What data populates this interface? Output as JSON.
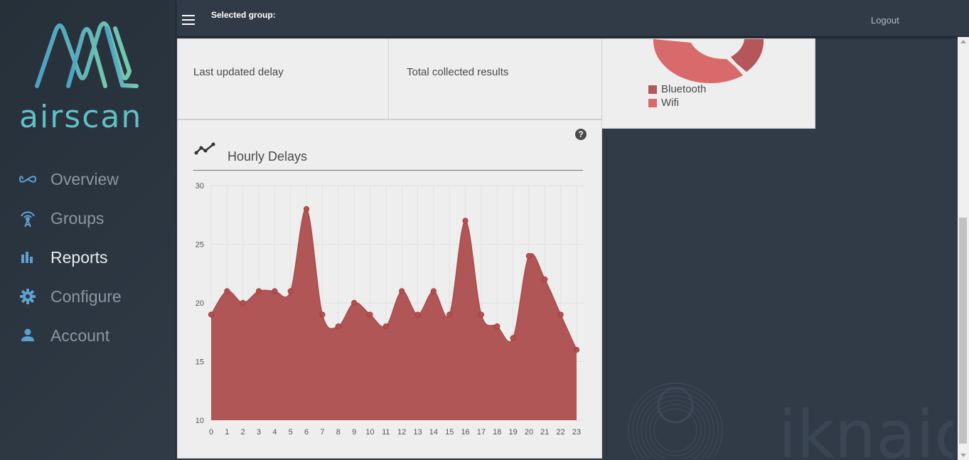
{
  "brand": {
    "name": "airscan"
  },
  "nav": {
    "items": [
      {
        "label": "Overview",
        "icon": "infinity-icon",
        "active": false
      },
      {
        "label": "Groups",
        "icon": "antenna-icon",
        "active": false
      },
      {
        "label": "Reports",
        "icon": "bar-chart-icon",
        "active": true
      },
      {
        "label": "Configure",
        "icon": "gear-icon",
        "active": false
      },
      {
        "label": "Account",
        "icon": "person-icon",
        "active": false
      }
    ]
  },
  "topbar": {
    "selected_group_label": "Selected group:",
    "logout_label": "Logout"
  },
  "cards": {
    "last_updated_label": "Last updated delay",
    "total_collected_label": "Total collected results"
  },
  "donut": {
    "legend": [
      {
        "label": "Bluetooth",
        "color": "#b5565a"
      },
      {
        "label": "Wifi",
        "color": "#d96a6c"
      }
    ]
  },
  "watermark": {
    "text": "iknaio"
  },
  "chart": {
    "title": "Hourly Delays",
    "help": "?"
  },
  "chart_data": {
    "type": "area",
    "x": [
      0,
      1,
      2,
      3,
      4,
      5,
      6,
      7,
      8,
      9,
      10,
      11,
      12,
      13,
      14,
      15,
      16,
      17,
      18,
      19,
      20,
      21,
      22,
      23
    ],
    "values": [
      19,
      21,
      20,
      21,
      21,
      21,
      28,
      19,
      18,
      20,
      19,
      18,
      21,
      19,
      21,
      19,
      27,
      19,
      18,
      17,
      24,
      22,
      19,
      16
    ],
    "ylim": [
      10,
      30
    ],
    "yticks": [
      10,
      15,
      20,
      25,
      30
    ],
    "grid": true,
    "color": "#b05656"
  }
}
